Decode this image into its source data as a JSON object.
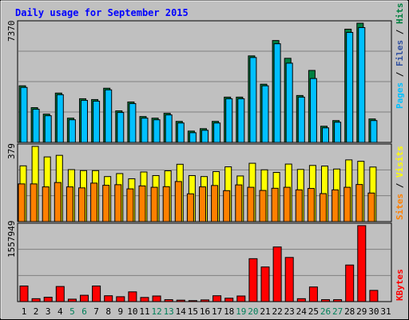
{
  "chart_data": [
    {
      "type": "bar",
      "title": "Daily usage for September 2015",
      "categories": [
        "1",
        "2",
        "3",
        "4",
        "5",
        "6",
        "7",
        "8",
        "9",
        "10",
        "11",
        "12",
        "13",
        "14",
        "15",
        "16",
        "17",
        "18",
        "19",
        "20",
        "21",
        "22",
        "23",
        "24",
        "25",
        "26",
        "27",
        "28",
        "29",
        "30",
        "31"
      ],
      "weekend_days": [
        "5",
        "6",
        "12",
        "13",
        "19",
        "20",
        "26",
        "27"
      ],
      "y_max_label": "7370",
      "ylabel": [
        "Pages",
        "Files",
        "Hits"
      ],
      "series": [
        {
          "name": "Hits",
          "color": "#008040",
          "values": [
            3500,
            2150,
            1750,
            3050,
            1500,
            2700,
            2650,
            3350,
            1950,
            2500,
            1600,
            1500,
            1800,
            1300,
            700,
            850,
            1300,
            2800,
            2800,
            5350,
            3600,
            6300,
            5200,
            2900,
            4450,
            1000,
            1350,
            7000,
            7370,
            1450,
            0
          ]
        },
        {
          "name": "Files",
          "color": "#00c0ff",
          "values": [
            3400,
            2050,
            1650,
            2950,
            1400,
            2600,
            2550,
            3250,
            1850,
            2400,
            1500,
            1400,
            1700,
            1200,
            600,
            750,
            1200,
            2700,
            2700,
            5250,
            3500,
            6100,
            4900,
            2800,
            3950,
            900,
            1250,
            6800,
            7100,
            1350,
            0
          ]
        },
        {
          "name": "Pages",
          "color": "#3050a0",
          "values": [
            3500,
            2150,
            1750,
            3050,
            1500,
            2700,
            2650,
            3350,
            1950,
            2500,
            1600,
            1500,
            1800,
            1300,
            700,
            850,
            1300,
            2800,
            2800,
            5350,
            3600,
            6300,
            5200,
            2900,
            4450,
            1000,
            1350,
            7000,
            7370,
            1450,
            0
          ]
        }
      ]
    },
    {
      "type": "bar",
      "y_max_label": "379",
      "ylabel": [
        "Sites",
        "Visits"
      ],
      "series": [
        {
          "name": "Visits",
          "color": "#ffff00",
          "values": [
            281,
            379,
            326,
            334,
            262,
            257,
            257,
            227,
            242,
            216,
            250,
            232,
            256,
            289,
            232,
            227,
            252,
            276,
            230,
            294,
            261,
            248,
            290,
            263,
            283,
            280,
            265,
            311,
            304,
            275,
            0
          ]
        },
        {
          "name": "Sites",
          "color": "#ff8000",
          "values": [
            190,
            190,
            175,
            197,
            175,
            170,
            194,
            183,
            186,
            165,
            180,
            173,
            176,
            202,
            140,
            175,
            182,
            156,
            185,
            173,
            157,
            168,
            173,
            160,
            167,
            141,
            160,
            173,
            187,
            144,
            0
          ]
        }
      ]
    },
    {
      "type": "bar",
      "y_max_label": "1557949",
      "ylabel": [
        "KBytes"
      ],
      "series": [
        {
          "name": "KBytes",
          "color": "#ff0000",
          "values": [
            320000,
            60000,
            90000,
            310000,
            50000,
            130000,
            320000,
            120000,
            100000,
            200000,
            85000,
            115000,
            40000,
            30000,
            20000,
            35000,
            120000,
            70000,
            115000,
            880000,
            710000,
            1120000,
            905000,
            60000,
            300000,
            40000,
            40000,
            750000,
            1557949,
            230000,
            0
          ]
        }
      ]
    }
  ]
}
